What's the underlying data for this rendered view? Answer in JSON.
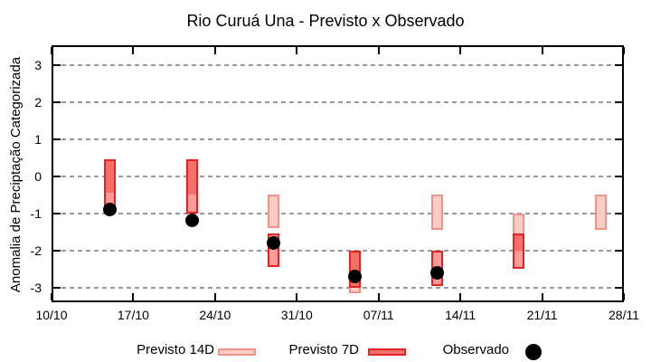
{
  "title": "Rio Curuá Una - Previsto x Observado",
  "y_axis_label": "Anomalia de Preciptação Categorizada",
  "legend": {
    "previsto_14d": "Previsto 14D",
    "previsto_7d": "Previsto 7D",
    "observado": "Observado"
  },
  "colors": {
    "forecast_14d_fill": "#fbccc6",
    "forecast_14d_border": "#f0918a",
    "forecast_7d_fill": "#fb9c99",
    "forecast_7d_border": "#e62321",
    "forecast_overlap_fill": "#f56f6b",
    "observed_dot": "#000000",
    "gridline": "#9a9a9a"
  },
  "chart_data": {
    "type": "range-bar-with-scatter",
    "title": "Rio Curuá Una - Previsto x Observado",
    "xlabel": "",
    "ylabel": "Anomalia de Preciptação Categorizada",
    "x_tick_labels": [
      "10/10",
      "17/10",
      "24/10",
      "31/10",
      "07/11",
      "14/11",
      "21/11",
      "28/11"
    ],
    "y_ticks": [
      3,
      2,
      1,
      0,
      -1,
      -2,
      -3
    ],
    "ylim": [
      -3.45,
      3.5
    ],
    "x_range": [
      "10/10",
      "28/11"
    ],
    "grid": "horizontal-dashed",
    "legend_position": "below-plot",
    "series": [
      {
        "name": "Previsto 14D",
        "type": "range-bar",
        "style": "light",
        "points": [
          {
            "date": "15/10",
            "hi": 0.45,
            "lo": -0.45
          },
          {
            "date": "22/10",
            "hi": 0.45,
            "lo": -0.5
          },
          {
            "date": "29/10",
            "hi": -0.5,
            "lo": -1.4
          },
          {
            "date": "05/11",
            "hi": -2.0,
            "lo": -3.15
          },
          {
            "date": "12/11",
            "hi": -0.5,
            "lo": -1.45
          },
          {
            "date": "19/11",
            "hi": -1.0,
            "lo": -2.0
          },
          {
            "date": "26/11",
            "hi": -0.5,
            "lo": -1.45
          }
        ]
      },
      {
        "name": "Previsto 7D",
        "type": "range-bar",
        "style": "dark",
        "points": [
          {
            "date": "15/10",
            "hi": 0.45,
            "lo": -0.85
          },
          {
            "date": "22/10",
            "hi": 0.45,
            "lo": -1.0
          },
          {
            "date": "29/10",
            "hi": -1.55,
            "lo": -2.45
          },
          {
            "date": "05/11",
            "hi": -2.0,
            "lo": -3.0
          },
          {
            "date": "12/11",
            "hi": -2.0,
            "lo": -2.95
          },
          {
            "date": "19/11",
            "hi": -1.55,
            "lo": -2.5
          }
        ]
      },
      {
        "name": "Observado",
        "type": "scatter",
        "points": [
          {
            "date": "15/10",
            "y": -0.9
          },
          {
            "date": "22/10",
            "y": -1.2
          },
          {
            "date": "29/10",
            "y": -1.8
          },
          {
            "date": "05/11",
            "y": -2.7
          },
          {
            "date": "12/11",
            "y": -2.6
          }
        ]
      }
    ]
  }
}
